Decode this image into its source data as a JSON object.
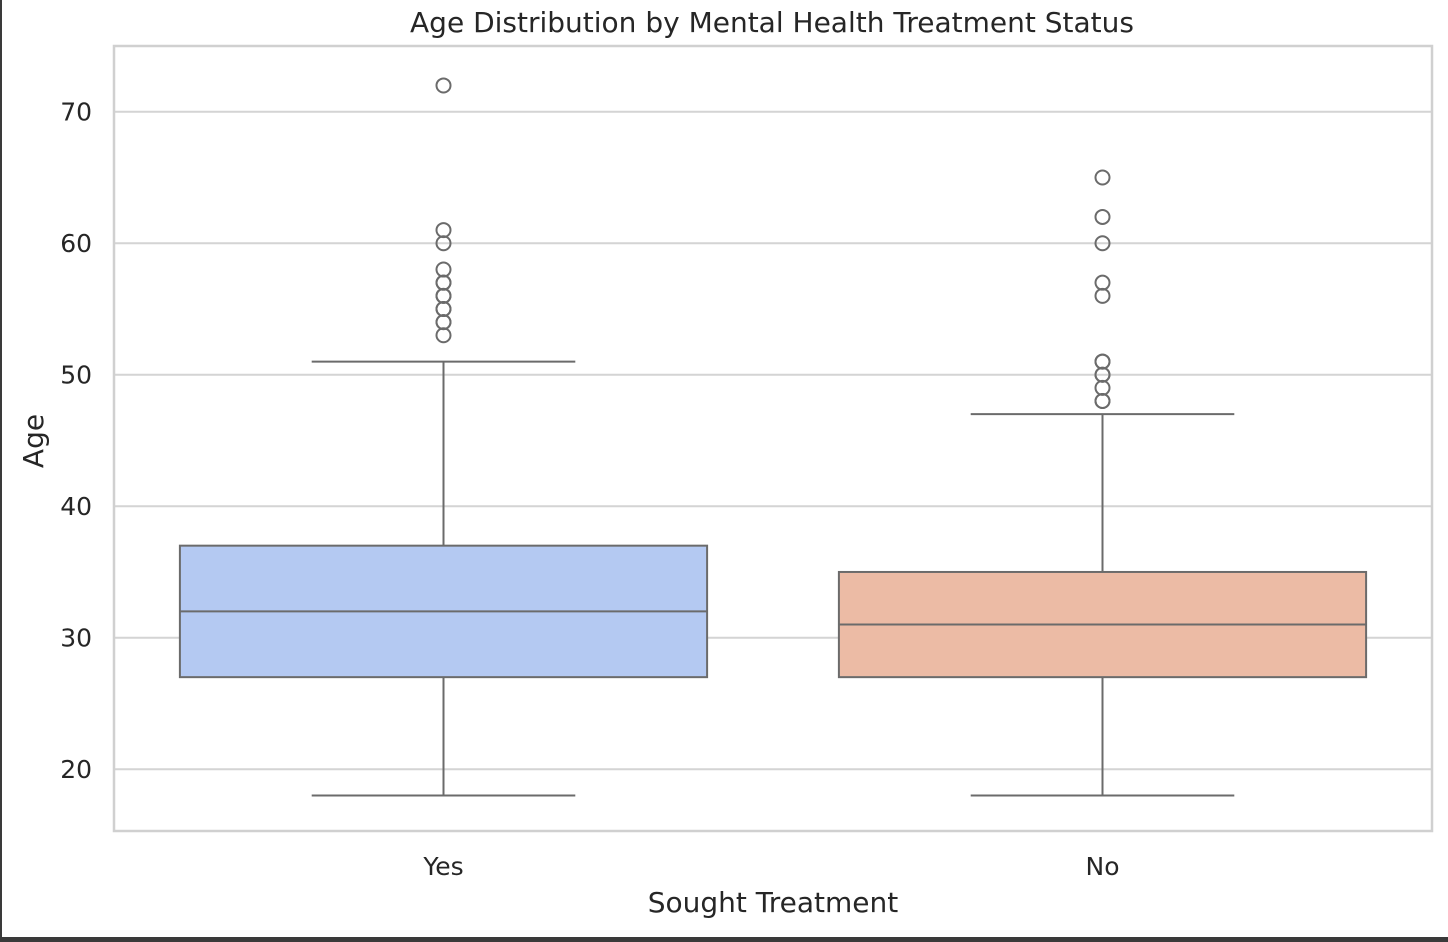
{
  "chart_data": {
    "type": "box",
    "title": "Age Distribution by Mental Health Treatment Status",
    "xlabel": "Sought Treatment",
    "ylabel": "Age",
    "ylim": [
      15.3,
      75.0
    ],
    "yticks": [
      20,
      30,
      40,
      50,
      60,
      70
    ],
    "grid": true,
    "categories": [
      "Yes",
      "No"
    ],
    "boxes": [
      {
        "category": "Yes",
        "color": "#b4c9f2",
        "whisker_low": 18,
        "q1": 27,
        "median": 32,
        "q3": 37,
        "whisker_high": 51,
        "outliers": [
          53,
          54,
          54,
          55,
          55,
          56,
          56,
          57,
          57,
          58,
          60,
          61,
          72
        ]
      },
      {
        "category": "No",
        "color": "#ecbba5",
        "whisker_low": 18,
        "q1": 27,
        "median": 31,
        "q3": 35,
        "whisker_high": 47,
        "outliers": [
          48,
          48,
          49,
          50,
          50,
          51,
          51,
          56,
          57,
          60,
          62,
          65
        ]
      }
    ]
  }
}
